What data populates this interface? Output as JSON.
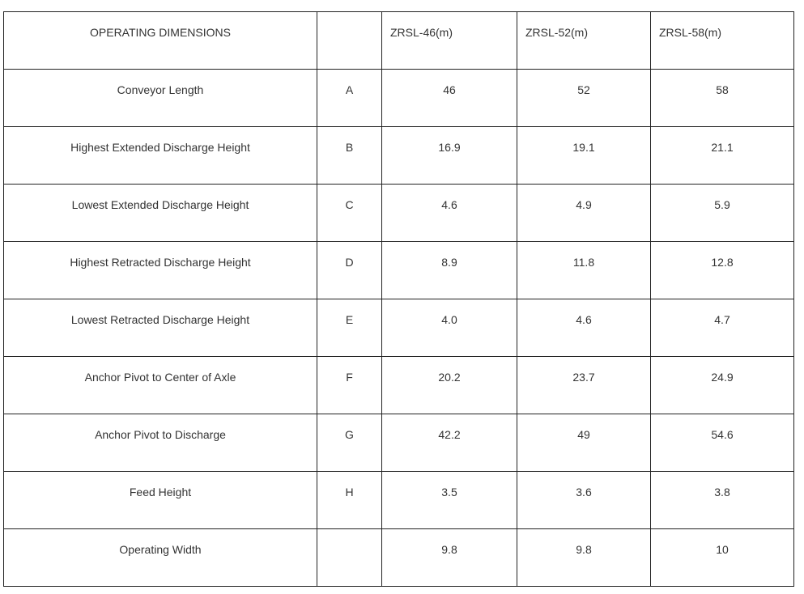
{
  "table": {
    "header": {
      "title": "OPERATING DIMENSIONS",
      "letter": "",
      "models": [
        "ZRSL-46(m)",
        "ZRSL-52(m)",
        "ZRSL-58(m)"
      ]
    },
    "rows": [
      {
        "label": "Conveyor Length",
        "letter": "A",
        "values": [
          "46",
          "52",
          "58"
        ]
      },
      {
        "label": "Highest Extended Discharge Height",
        "letter": "B",
        "values": [
          "16.9",
          "19.1",
          "21.1"
        ]
      },
      {
        "label": "Lowest Extended Discharge Height",
        "letter": "C",
        "values": [
          "4.6",
          "4.9",
          "5.9"
        ]
      },
      {
        "label": "Highest Retracted Discharge Height",
        "letter": "D",
        "values": [
          "8.9",
          "11.8",
          "12.8"
        ]
      },
      {
        "label": "Lowest Retracted Discharge Height",
        "letter": "E",
        "values": [
          "4.0",
          "4.6",
          "4.7"
        ]
      },
      {
        "label": "Anchor Pivot to Center of Axle",
        "letter": "F",
        "values": [
          "20.2",
          "23.7",
          "24.9"
        ]
      },
      {
        "label": "Anchor Pivot to Discharge",
        "letter": "G",
        "values": [
          "42.2",
          "49",
          "54.6"
        ]
      },
      {
        "label": "Feed Height",
        "letter": "H",
        "values": [
          "3.5",
          "3.6",
          "3.8"
        ]
      },
      {
        "label": "Operating Width",
        "letter": "",
        "values": [
          "9.8",
          "9.8",
          "10"
        ]
      }
    ]
  }
}
